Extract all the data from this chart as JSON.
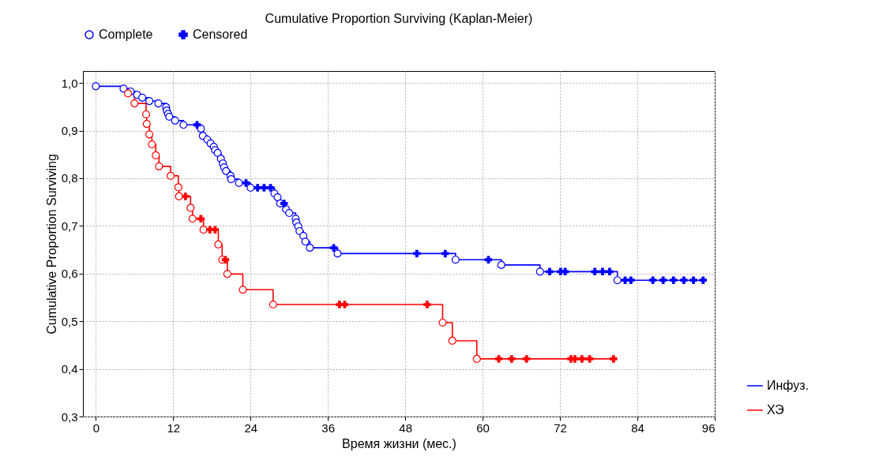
{
  "chart_data": {
    "type": "step",
    "title": "Cumulative Proportion Surviving (Kaplan-Meier)",
    "xlabel": "Время жизни (мес.)",
    "ylabel": "Cumulative Proportion Surviving",
    "xlim": [
      -2,
      96
    ],
    "xticks": [
      0,
      12,
      24,
      36,
      48,
      60,
      72,
      84,
      96
    ],
    "ylim": [
      0.3,
      1.025
    ],
    "yticks": [
      {
        "value": 0.3,
        "label": "0,3"
      },
      {
        "value": 0.4,
        "label": "0,4"
      },
      {
        "value": 0.5,
        "label": "0,5"
      },
      {
        "value": 0.6,
        "label": "0,6"
      },
      {
        "value": 0.7,
        "label": "0,7"
      },
      {
        "value": 0.8,
        "label": "0,8"
      },
      {
        "value": 0.9,
        "label": "0,9"
      },
      {
        "value": 1.0,
        "label": "1,0"
      }
    ],
    "grid": true,
    "legend": "top",
    "series": [
      {
        "name": "Инфуз.",
        "color": "#0000ff",
        "x": [
          0,
          4.3,
          5.4,
          6.4,
          7.2,
          8.3,
          9.7,
          10.9,
          11.0,
          11.2,
          11.4,
          12.3,
          13.6,
          16.3,
          16.6,
          17.3,
          17.8,
          18.3,
          18.5,
          18.9,
          19.4,
          19.7,
          19.9,
          20.2,
          20.9,
          21.0,
          22.2,
          24.0,
          27.7,
          28.2,
          28.6,
          29.5,
          30.0,
          31.0,
          31.1,
          31.4,
          31.6,
          32.2,
          32.5,
          33.2,
          37.5,
          55.8,
          62.9,
          68.9,
          80.9,
          94.2
        ],
        "values": [
          0.993,
          0.988,
          0.982,
          0.975,
          0.969,
          0.962,
          0.957,
          0.949,
          0.942,
          0.935,
          0.929,
          0.921,
          0.912,
          0.904,
          0.889,
          0.881,
          0.873,
          0.866,
          0.859,
          0.853,
          0.841,
          0.831,
          0.823,
          0.815,
          0.805,
          0.798,
          0.79,
          0.78,
          0.768,
          0.76,
          0.747,
          0.735,
          0.727,
          0.715,
          0.707,
          0.699,
          0.689,
          0.679,
          0.667,
          0.654,
          0.642,
          0.629,
          0.618,
          0.604,
          0.586,
          0.586
        ]
      },
      {
        "name": "ХЭ",
        "color": "#ff0000",
        "x": [
          5.0,
          6.0,
          7.8,
          7.9,
          8.3,
          8.7,
          9.3,
          9.8,
          11.6,
          12.8,
          12.9,
          14.7,
          15.0,
          16.7,
          19.0,
          19.6,
          20.4,
          22.8,
          27.5,
          53.8,
          55.3,
          59.1,
          80.3
        ],
        "values": [
          0.978,
          0.957,
          0.934,
          0.914,
          0.892,
          0.871,
          0.848,
          0.825,
          0.805,
          0.781,
          0.762,
          0.738,
          0.715,
          0.692,
          0.661,
          0.629,
          0.599,
          0.566,
          0.535,
          0.497,
          0.459,
          0.421,
          0.421
        ]
      },
      {
        "name": "Complete",
        "type": "scatter",
        "marker": "circle",
        "color": "#0000ff",
        "x": [
          0,
          4.3,
          5.4,
          6.4,
          7.2,
          8.3,
          9.7,
          10.9,
          11.0,
          11.2,
          11.4,
          12.3,
          13.6,
          16.3,
          16.6,
          17.3,
          17.8,
          18.3,
          18.5,
          18.9,
          19.4,
          19.7,
          19.9,
          20.2,
          20.9,
          21.0,
          22.2,
          24.0,
          27.7,
          28.2,
          28.6,
          29.5,
          30.0,
          31.0,
          31.1,
          31.4,
          31.6,
          32.2,
          32.5,
          33.2,
          37.5,
          55.8,
          62.9,
          68.9,
          80.9
        ],
        "values": [
          0.993,
          0.988,
          0.982,
          0.975,
          0.969,
          0.962,
          0.957,
          0.949,
          0.942,
          0.935,
          0.929,
          0.921,
          0.912,
          0.904,
          0.889,
          0.881,
          0.873,
          0.866,
          0.859,
          0.853,
          0.841,
          0.831,
          0.823,
          0.815,
          0.805,
          0.798,
          0.79,
          0.78,
          0.768,
          0.76,
          0.747,
          0.735,
          0.727,
          0.715,
          0.707,
          0.699,
          0.689,
          0.679,
          0.667,
          0.654,
          0.642,
          0.629,
          0.618,
          0.604,
          0.586
        ]
      },
      {
        "type": "scatter",
        "marker": "circle",
        "color": "#ff0000",
        "x": [
          5.0,
          6.0,
          7.8,
          7.9,
          8.3,
          8.7,
          9.3,
          9.8,
          11.6,
          12.8,
          12.9,
          14.7,
          15.0,
          16.7,
          19.0,
          19.6,
          20.4,
          22.8,
          27.5,
          53.8,
          55.3,
          59.1
        ],
        "values": [
          0.978,
          0.957,
          0.934,
          0.914,
          0.892,
          0.871,
          0.848,
          0.825,
          0.805,
          0.781,
          0.762,
          0.738,
          0.715,
          0.692,
          0.661,
          0.629,
          0.599,
          0.566,
          0.535,
          0.497,
          0.459,
          0.421
        ]
      },
      {
        "name": "Censored",
        "type": "scatter",
        "marker": "cross",
        "color": "#0000ff",
        "x": [
          15.7,
          23.3,
          25.1,
          26.1,
          27.1,
          29.2,
          36.9,
          49.8,
          54.2,
          60.9,
          70.4,
          72.1,
          72.8,
          77.4,
          78.6,
          79.7,
          82.1,
          83.0,
          86.4,
          88.0,
          89.6,
          91.2,
          92.7,
          94.2
        ],
        "values": [
          0.912,
          0.79,
          0.78,
          0.78,
          0.78,
          0.747,
          0.654,
          0.642,
          0.642,
          0.629,
          0.604,
          0.604,
          0.604,
          0.604,
          0.604,
          0.604,
          0.586,
          0.586,
          0.586,
          0.586,
          0.586,
          0.586,
          0.586,
          0.586
        ]
      },
      {
        "type": "scatter",
        "marker": "cross",
        "color": "#ff0000",
        "x": [
          13.9,
          16.3,
          17.7,
          18.5,
          20.1,
          37.8,
          38.6,
          51.4,
          62.5,
          64.5,
          66.8,
          73.7,
          74.3,
          75.4,
          76.6,
          80.3
        ],
        "values": [
          0.762,
          0.715,
          0.692,
          0.692,
          0.629,
          0.535,
          0.535,
          0.535,
          0.421,
          0.421,
          0.421,
          0.421,
          0.421,
          0.421,
          0.421,
          0.421
        ]
      }
    ]
  }
}
